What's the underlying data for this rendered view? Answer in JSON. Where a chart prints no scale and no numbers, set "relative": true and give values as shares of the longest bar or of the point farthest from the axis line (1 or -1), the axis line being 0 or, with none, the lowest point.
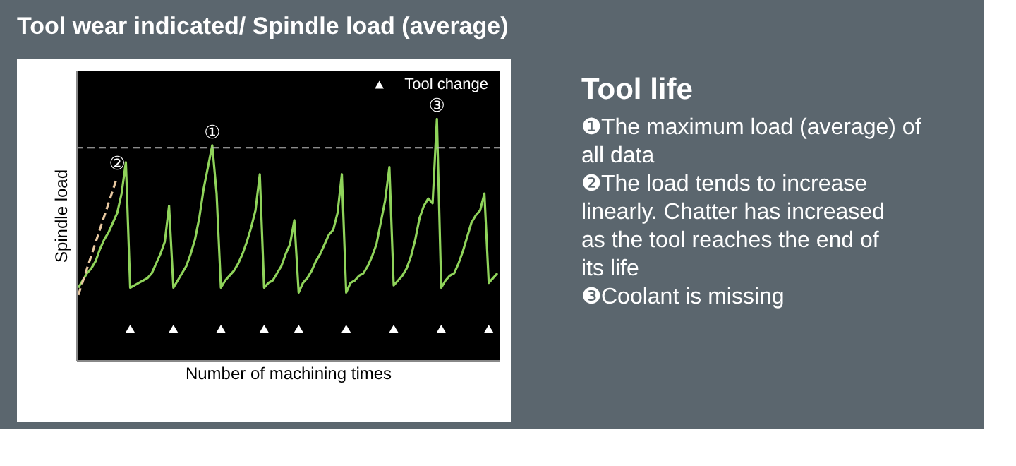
{
  "chart_data": [
    {
      "type": "line",
      "title": "Tool wear indicated/ Spindle load (average)",
      "xlabel": "Number of machining times",
      "ylabel": "Spindle load",
      "relative": true,
      "tick_labels": false,
      "categories": [
        null,
        null,
        null,
        null,
        null,
        null,
        null,
        null,
        null,
        null,
        null,
        null,
        null,
        null,
        null,
        null,
        null,
        null,
        null,
        null,
        null,
        null,
        null,
        null,
        null,
        null,
        null,
        null,
        null,
        null,
        null,
        null,
        null,
        null,
        null,
        null,
        null,
        null,
        null,
        null,
        null,
        null,
        null,
        null,
        null,
        null,
        null,
        null,
        null,
        null,
        null,
        null,
        null,
        null,
        null,
        null,
        null,
        null,
        null,
        null,
        null,
        null,
        null,
        null,
        null,
        null,
        null,
        null,
        null,
        null,
        null,
        null,
        null,
        null,
        null,
        null,
        null,
        null,
        null,
        null,
        null,
        null,
        null,
        null,
        null,
        null,
        null,
        null,
        null,
        null,
        null,
        null,
        null,
        null,
        null,
        null,
        null,
        null
      ],
      "series": [
        {
          "type": "line",
          "color": "#8fd35a",
          "values": [
            0.3,
            0.33,
            0.36,
            0.38,
            0.41,
            0.46,
            0.5,
            0.53,
            0.57,
            0.61,
            0.69,
            0.82,
            0.3,
            0.31,
            0.32,
            0.33,
            0.34,
            0.36,
            0.4,
            0.44,
            0.49,
            0.64,
            0.3,
            0.33,
            0.36,
            0.39,
            0.44,
            0.5,
            0.59,
            0.71,
            0.8,
            0.89,
            0.69,
            0.3,
            0.33,
            0.35,
            0.37,
            0.4,
            0.44,
            0.49,
            0.55,
            0.62,
            0.77,
            0.3,
            0.32,
            0.33,
            0.36,
            0.39,
            0.44,
            0.48,
            0.58,
            0.28,
            0.32,
            0.34,
            0.37,
            0.41,
            0.44,
            0.48,
            0.52,
            0.54,
            0.61,
            0.77,
            0.28,
            0.32,
            0.33,
            0.35,
            0.36,
            0.39,
            0.43,
            0.48,
            0.57,
            0.66,
            0.8,
            0.31,
            0.33,
            0.35,
            0.38,
            0.43,
            0.5,
            0.59,
            0.64,
            0.67,
            0.65,
            1.0,
            0.3,
            0.33,
            0.35,
            0.36,
            0.4,
            0.45,
            0.51,
            0.57,
            0.6,
            0.62,
            0.69,
            0.32,
            0.34,
            0.36
          ]
        },
        {
          "type": "line",
          "color": "#e8c8a0",
          "line_style": "dashed",
          "values": [
            0.27,
            null,
            null,
            null,
            null,
            null,
            null,
            null,
            null,
            0.76,
            null,
            null,
            null,
            null,
            null,
            null,
            null,
            null,
            null,
            null,
            null,
            null,
            null,
            null,
            null,
            null,
            null,
            null,
            null,
            null,
            null,
            null,
            null,
            null,
            null,
            null,
            null,
            null,
            null,
            null,
            null,
            null,
            null,
            null,
            null,
            null,
            null,
            null,
            null,
            null,
            null,
            null,
            null,
            null,
            null,
            null,
            null,
            null,
            null,
            null,
            null,
            null,
            null,
            null,
            null,
            null,
            null,
            null,
            null,
            null,
            null,
            null,
            null,
            null,
            null,
            null,
            null,
            null,
            null,
            null,
            null,
            null,
            null,
            null,
            null,
            null,
            null,
            null,
            null,
            null,
            null,
            null,
            null,
            null,
            null,
            null,
            null,
            null
          ]
        }
      ],
      "ref_lines": [
        {
          "axis": "y",
          "value": 0.88,
          "color": "#bbbbbb",
          "line_style": "dashed"
        }
      ],
      "annotations": [
        "Tool change",
        {
          "text": "①",
          "y": 0.89
        },
        {
          "text": "②",
          "y": 0.76
        },
        {
          "text": "③",
          "y": 1.0
        }
      ]
    },
    {
      "type": "other",
      "title": "Tool life",
      "annotations": [
        "❶The maximum load (average) of all data",
        "❷The load tends to increase linearly. Chatter has increased as the tool reaches the end of its life",
        "❸Coolant is missing"
      ]
    }
  ]
}
